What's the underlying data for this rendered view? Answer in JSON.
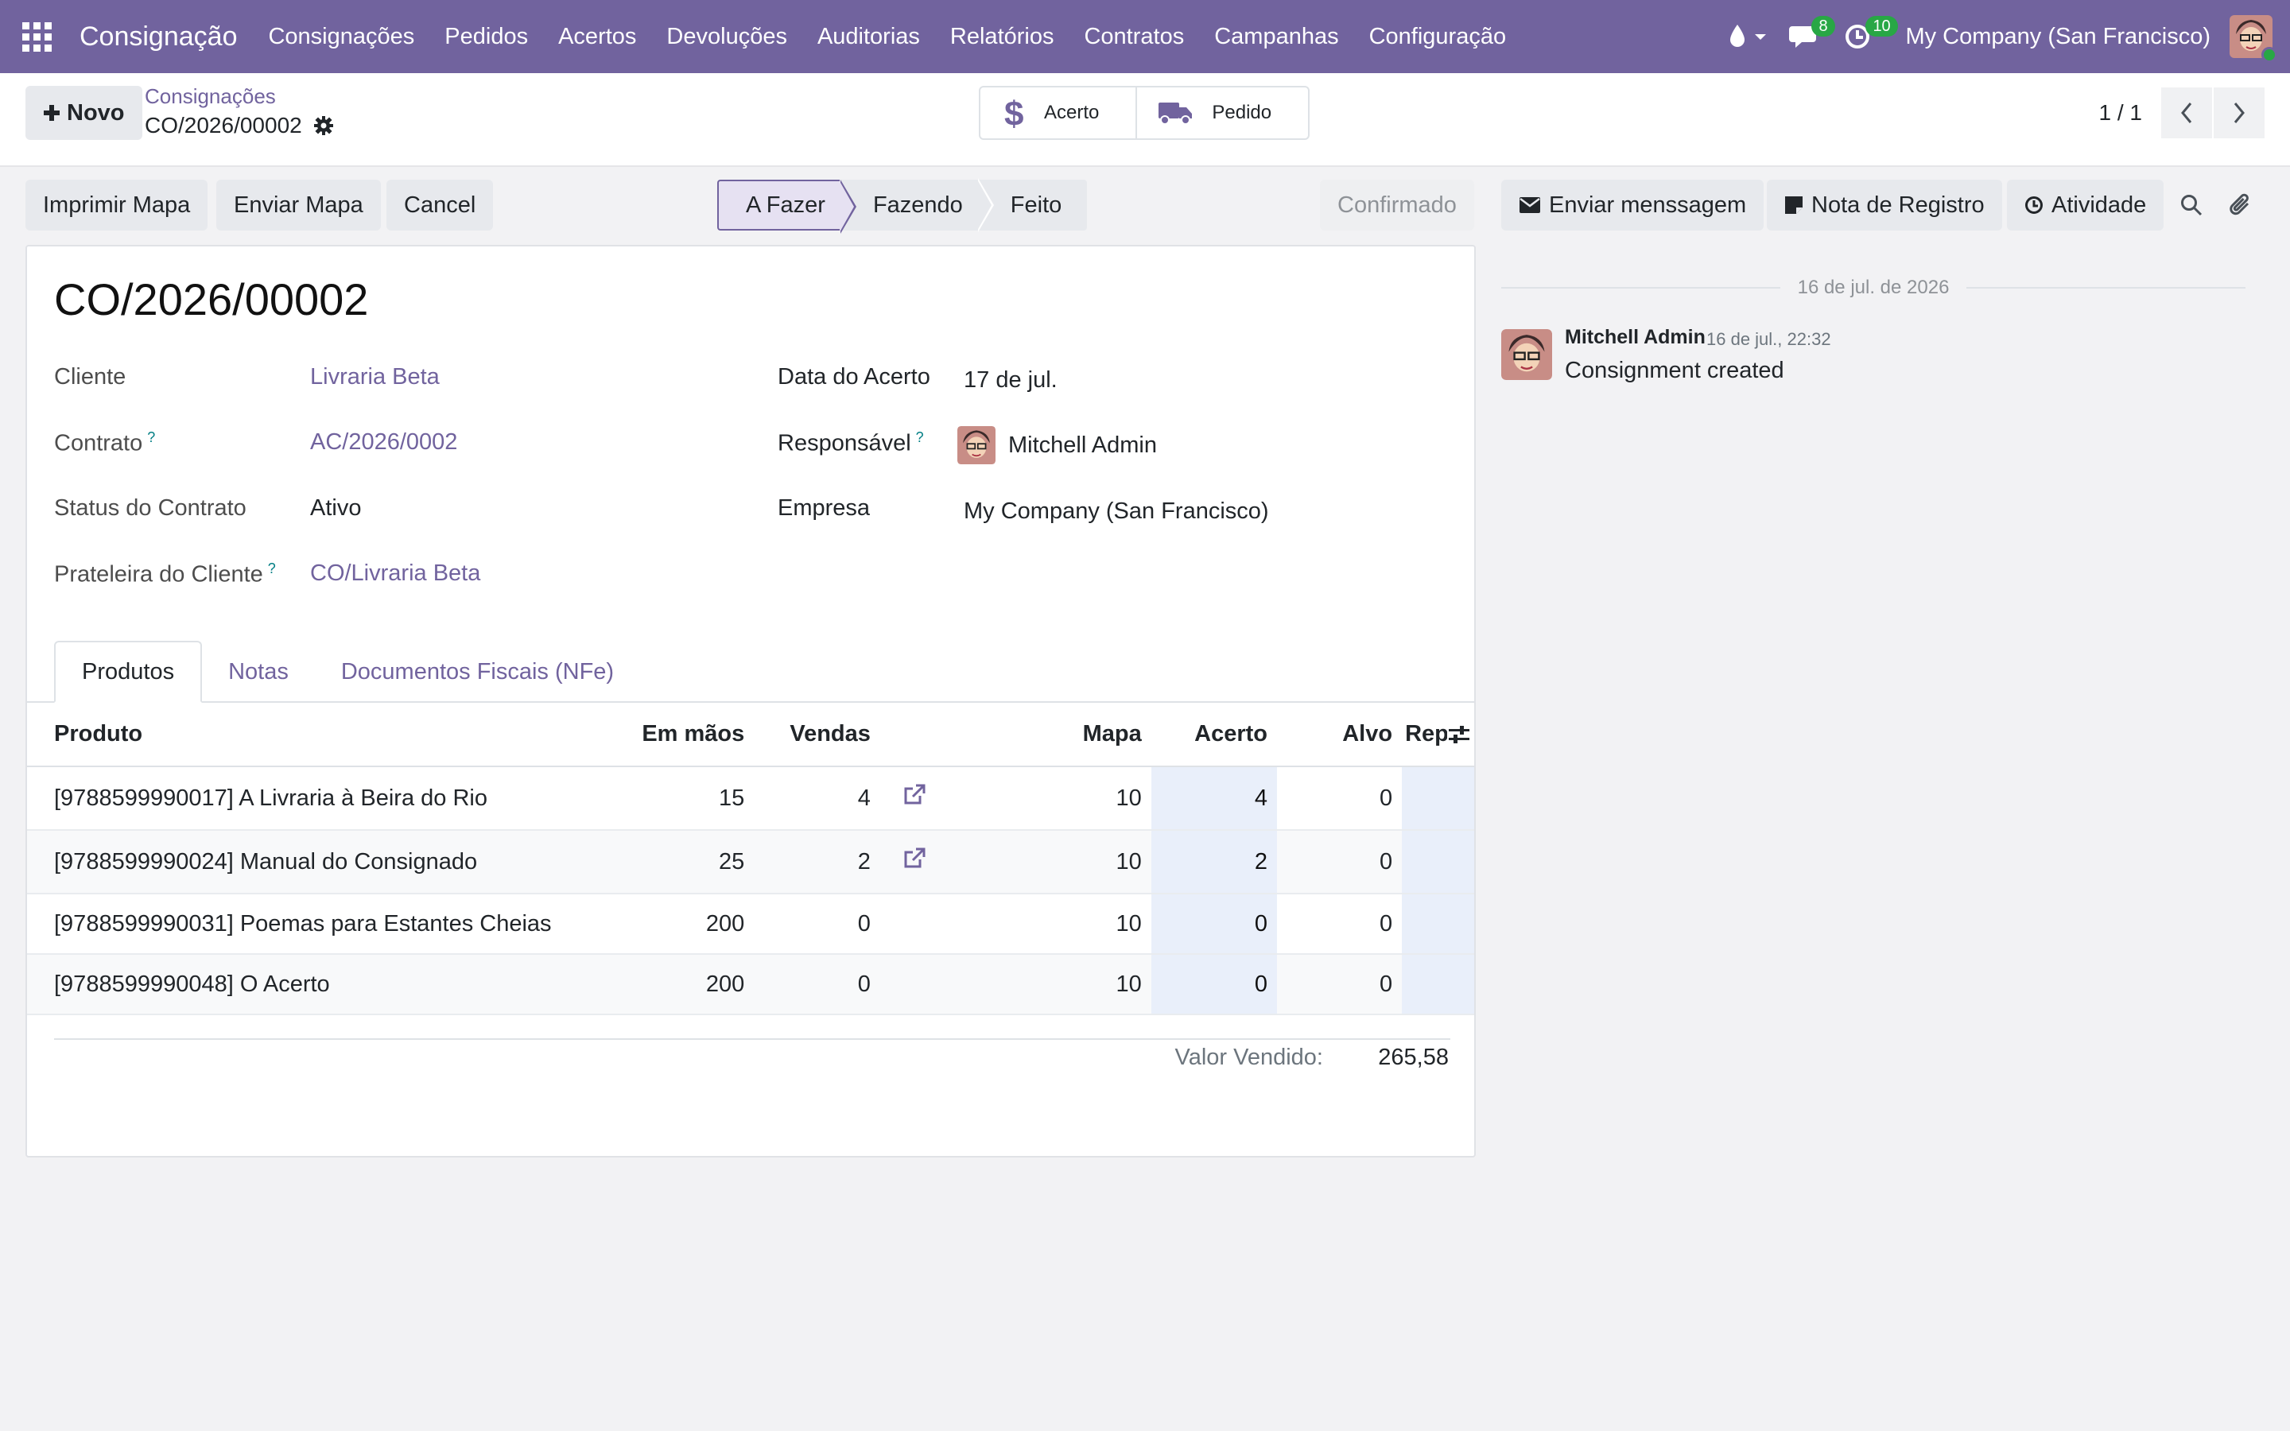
{
  "navbar": {
    "brand": "Consignação",
    "menu": [
      "Consignações",
      "Pedidos",
      "Acertos",
      "Devoluções",
      "Auditorias",
      "Relatórios",
      "Contratos",
      "Campanhas",
      "Configuração"
    ],
    "messages_badge": "8",
    "activities_badge": "10",
    "company": "My Company (San Francisco)",
    "accent_color": "#71639e"
  },
  "control": {
    "new_label": "Novo",
    "breadcrumb_parent": "Consignações",
    "breadcrumb_current": "CO/2026/00002",
    "smart_buttons": [
      {
        "icon": "dollar-icon",
        "label": "Acerto"
      },
      {
        "icon": "truck-icon",
        "label": "Pedido"
      }
    ],
    "pager": "1 / 1"
  },
  "statusbar": {
    "actions": [
      "Imprimir Mapa",
      "Enviar Mapa",
      "Cancel"
    ],
    "stages": [
      "A Fazer",
      "Fazendo",
      "Feito"
    ],
    "active_stage": "A Fazer",
    "confirmed_label": "Confirmado"
  },
  "form": {
    "title": "CO/2026/00002",
    "left_fields": [
      {
        "label": "Cliente",
        "value": "Livraria Beta",
        "help": ""
      },
      {
        "label": "Contrato",
        "value": "AC/2026/0002",
        "help": "?"
      },
      {
        "label": "Status do Contrato",
        "value": "Ativo",
        "help": ""
      },
      {
        "label": "Prateleira do Cliente",
        "value": "CO/Livraria Beta",
        "help": "?"
      }
    ],
    "right_fields": [
      {
        "label": "Data do Acerto",
        "value": "17 de jul.",
        "help": ""
      },
      {
        "label": "Responsável",
        "value": "Mitchell Admin",
        "help": "?"
      },
      {
        "label": "Empresa",
        "value": "My Company (San Francisco)",
        "help": ""
      }
    ],
    "tabs": [
      "Produtos",
      "Notas",
      "Documentos Fiscais (NFe)"
    ],
    "active_tab": "Produtos",
    "table": {
      "columns": [
        "Produto",
        "Em mãos",
        "Vendas",
        "",
        "Mapa",
        "Acerto",
        "Alvo",
        "Rep"
      ],
      "rows": [
        {
          "produto": "[9788599990017] A Livraria à Beira do Rio",
          "em_maos": "15",
          "vendas": "4",
          "link": true,
          "mapa": "10",
          "acerto": "4",
          "alvo": "0"
        },
        {
          "produto": "[9788599990024] Manual do Consignado",
          "em_maos": "25",
          "vendas": "2",
          "link": true,
          "mapa": "10",
          "acerto": "2",
          "alvo": "0"
        },
        {
          "produto": "[9788599990031] Poemas para Estantes Cheias",
          "em_maos": "200",
          "vendas": "0",
          "link": false,
          "mapa": "10",
          "acerto": "0",
          "alvo": "0"
        },
        {
          "produto": "[9788599990048] O Acerto",
          "em_maos": "200",
          "vendas": "0",
          "link": false,
          "mapa": "10",
          "acerto": "0",
          "alvo": "0"
        }
      ]
    },
    "total_label": "Valor Vendido:",
    "total_value": "265,58"
  },
  "chatter": {
    "send_message": "Enviar menssagem",
    "log_note": "Nota de Registro",
    "activity": "Atividade",
    "date_separator": "16 de jul. de 2026",
    "message": {
      "author": "Mitchell Admin",
      "time": "16 de jul., 22:32",
      "body": "Consignment created"
    }
  }
}
